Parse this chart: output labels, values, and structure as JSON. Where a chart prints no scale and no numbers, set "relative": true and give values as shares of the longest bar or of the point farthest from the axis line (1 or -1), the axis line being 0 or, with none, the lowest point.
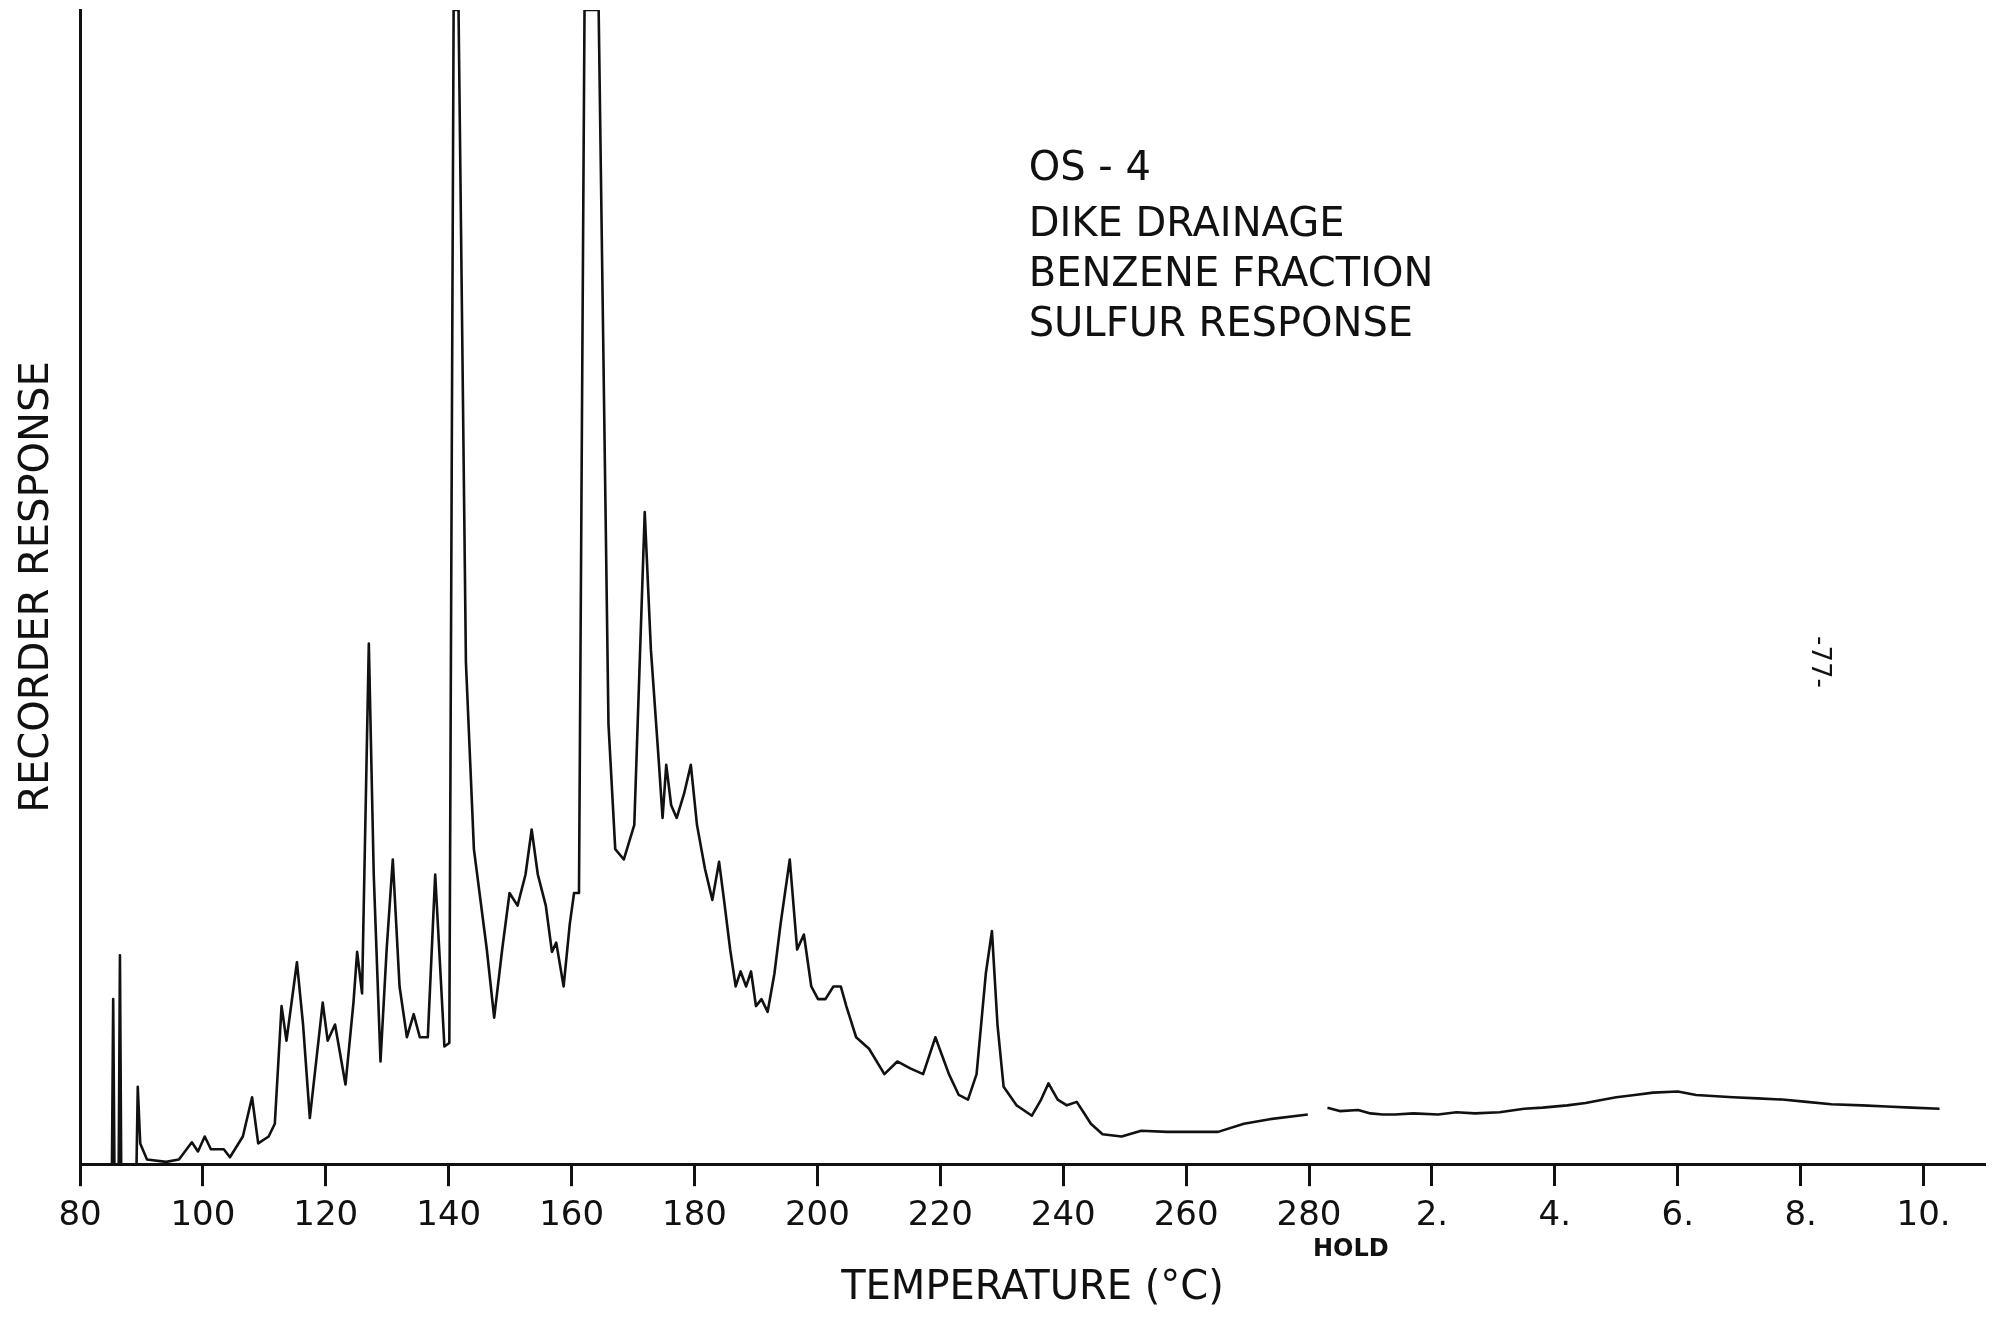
{
  "chart_data": {
    "type": "line",
    "title": "OS - 4",
    "subtitle": "DIKE DRAINAGE\nBENZENE FRACTION\nSULFUR RESPONSE",
    "xlabel": "TEMPERATURE (°C)",
    "ylabel": "RECORDER RESPONSE",
    "x2label": "HOLD",
    "annotations": [
      "-77-"
    ],
    "relative": true,
    "xlim": [
      80,
      390
    ],
    "xticks": [
      80,
      100,
      120,
      140,
      160,
      180,
      200,
      220,
      240,
      260,
      280
    ],
    "x2lim": [
      -20,
      11
    ],
    "x2ticks": [
      {
        "value": 2,
        "label": "2."
      },
      {
        "value": 4,
        "label": "4."
      },
      {
        "value": 6,
        "label": "6."
      },
      {
        "value": 8,
        "label": "8."
      },
      {
        "value": 10,
        "label": "10."
      }
    ],
    "series": [
      {
        "color": "#111111",
        "x": [
          80.6,
          85.2,
          85.4,
          85.6,
          86.3,
          86.5,
          86.7,
          89.2,
          89.4,
          89.8,
          90.9,
          94.0,
          96.1,
          98.2,
          99.2,
          100.3,
          101.3,
          103.4,
          104.4,
          106.5,
          108.0,
          109.0,
          110.7,
          111.7,
          112.8,
          113.6,
          115.3,
          116.3,
          117.4,
          119.5,
          120.3,
          121.5,
          123.2,
          124.5,
          125.1,
          125.9,
          127.0,
          127.8,
          128.9,
          129.9,
          130.9,
          132.0,
          133.2,
          134.3,
          135.3,
          136.6,
          137.8,
          139.3,
          140.1,
          140.8,
          141.6,
          142.8,
          144.1,
          146.2,
          147.4,
          148.7,
          149.9,
          151.2,
          152.5,
          153.5,
          154.5,
          155.8,
          156.8,
          157.5,
          158.7,
          159.7,
          160.4,
          161.2,
          162.1,
          164.4,
          166.0,
          167.1,
          168.5,
          170.2,
          171.9,
          172.9,
          174.2,
          174.8,
          175.4,
          176.2,
          177.1,
          178.3,
          179.4,
          180.4,
          181.7,
          182.9,
          184.0,
          184.8,
          185.8,
          186.7,
          187.5,
          188.4,
          189.2,
          190.0,
          190.9,
          191.9,
          193.0,
          194.0,
          195.5,
          196.7,
          197.8,
          199.0,
          200.1,
          201.3,
          202.6,
          203.8,
          204.7,
          206.3,
          208.4,
          210.9,
          213.0,
          215.1,
          217.2,
          219.2,
          220.3,
          221.4,
          223.0,
          224.5,
          225.9,
          227.4,
          228.4,
          229.3,
          230.3,
          232.4,
          234.9,
          236.4,
          237.6,
          239.1,
          240.6,
          242.2,
          243.3,
          244.5,
          246.4,
          249.5,
          252.7,
          256.9,
          261.0,
          265.2,
          269.4,
          273.6,
          279.8
        ],
        "values": [
          0,
          0,
          0.143,
          0,
          0,
          0.181,
          0,
          0,
          0.067,
          0.018,
          0.004,
          0.002,
          0.004,
          0.019,
          0.011,
          0.024,
          0.013,
          0.013,
          0.006,
          0.024,
          0.058,
          0.018,
          0.024,
          0.035,
          0.137,
          0.107,
          0.175,
          0.121,
          0.04,
          0.14,
          0.107,
          0.121,
          0.069,
          0.14,
          0.184,
          0.148,
          0.451,
          0.251,
          0.089,
          0.186,
          0.264,
          0.154,
          0.11,
          0.13,
          0.11,
          0.11,
          0.251,
          0.102,
          0.105,
          1,
          1,
          0.435,
          0.273,
          0.186,
          0.127,
          0.186,
          0.235,
          0.224,
          0.251,
          0.29,
          0.251,
          0.224,
          0.184,
          0.192,
          0.154,
          0.208,
          0.235,
          0.235,
          1,
          1,
          0.381,
          0.273,
          0.264,
          0.294,
          0.565,
          0.446,
          0.348,
          0.3,
          0.346,
          0.311,
          0.3,
          0.321,
          0.346,
          0.294,
          0.256,
          0.229,
          0.262,
          0.229,
          0.186,
          0.154,
          0.167,
          0.154,
          0.167,
          0.137,
          0.143,
          0.132,
          0.165,
          0.208,
          0.264,
          0.186,
          0.199,
          0.154,
          0.143,
          0.143,
          0.154,
          0.154,
          0.137,
          0.11,
          0.1,
          0.078,
          0.089,
          0.083,
          0.078,
          0.11,
          0.094,
          0.078,
          0.06,
          0.056,
          0.078,
          0.165,
          0.202,
          0.121,
          0.067,
          0.051,
          0.042,
          0.056,
          0.07,
          0.056,
          0.051,
          0.054,
          0.045,
          0.035,
          0.026,
          0.024,
          0.029,
          0.028,
          0.028,
          0.028,
          0.035,
          0.039,
          0.043
        ]
      },
      {
        "color": "#111111",
        "axis": "x2",
        "x": [
          0.3,
          0.5,
          0.8,
          1.0,
          1.2,
          1.4,
          1.7,
          2.1,
          2.4,
          2.7,
          3.1,
          3.5,
          3.8,
          4.2,
          4.5,
          4.8,
          5.0,
          5.3,
          5.6,
          6.0,
          6.3,
          6.9,
          7.3,
          7.7,
          8.1,
          8.5,
          9.0,
          9.4,
          9.8,
          10.26
        ],
        "values": [
          0.049,
          0.046,
          0.047,
          0.044,
          0.043,
          0.043,
          0.044,
          0.043,
          0.045,
          0.044,
          0.045,
          0.048,
          0.049,
          0.051,
          0.053,
          0.056,
          0.058,
          0.06,
          0.062,
          0.063,
          0.06,
          0.058,
          0.057,
          0.056,
          0.054,
          0.052,
          0.051,
          0.05,
          0.049,
          0.048
        ]
      }
    ]
  }
}
